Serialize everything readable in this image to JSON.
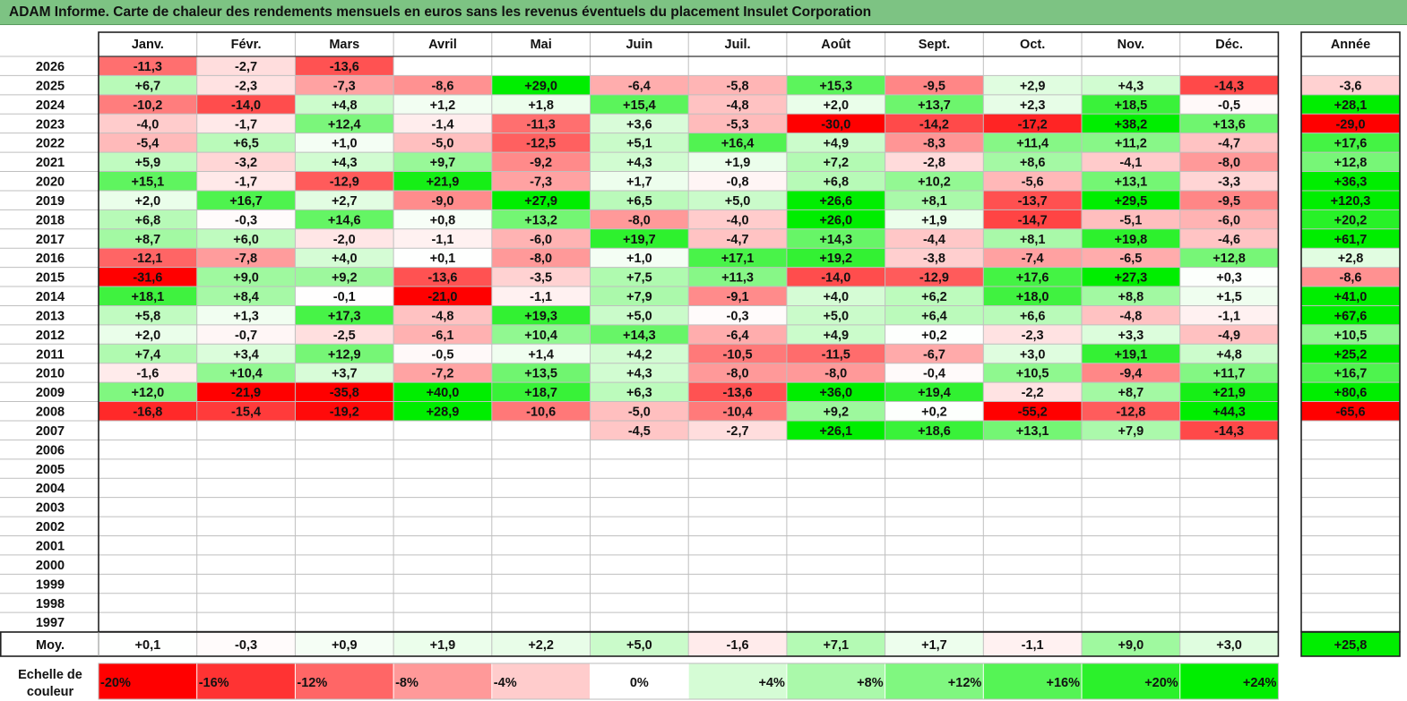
{
  "title": "ADAM Informe. Carte de chaleur des rendements mensuels en euros sans les revenus éventuels du placement Insulet Corporation",
  "chart_data": {
    "type": "heatmap",
    "months": [
      "Janv.",
      "Févr.",
      "Mars",
      "Avril",
      "Mai",
      "Juin",
      "Juil.",
      "Août",
      "Sept.",
      "Oct.",
      "Nov.",
      "Déc."
    ],
    "year_header": "Année",
    "rows": [
      {
        "year": "2026",
        "values": [
          "-11,3",
          "-2,7",
          "-13,6",
          "",
          "",
          "",
          "",
          "",
          "",
          "",
          "",
          ""
        ],
        "total": ""
      },
      {
        "year": "2025",
        "values": [
          "+6,7",
          "-2,3",
          "-7,3",
          "-8,6",
          "+29,0",
          "-6,4",
          "-5,8",
          "+15,3",
          "-9,5",
          "+2,9",
          "+4,3",
          "-14,3"
        ],
        "total": "-3,6"
      },
      {
        "year": "2024",
        "values": [
          "-10,2",
          "-14,0",
          "+4,8",
          "+1,2",
          "+1,8",
          "+15,4",
          "-4,8",
          "+2,0",
          "+13,7",
          "+2,3",
          "+18,5",
          "-0,5"
        ],
        "total": "+28,1"
      },
      {
        "year": "2023",
        "values": [
          "-4,0",
          "-1,7",
          "+12,4",
          "-1,4",
          "-11,3",
          "+3,6",
          "-5,3",
          "-30,0",
          "-14,2",
          "-17,2",
          "+38,2",
          "+13,6"
        ],
        "total": "-29,0"
      },
      {
        "year": "2022",
        "values": [
          "-5,4",
          "+6,5",
          "+1,0",
          "-5,0",
          "-12,5",
          "+5,1",
          "+16,4",
          "+4,9",
          "-8,3",
          "+11,4",
          "+11,2",
          "-4,7"
        ],
        "total": "+17,6"
      },
      {
        "year": "2021",
        "values": [
          "+5,9",
          "-3,2",
          "+4,3",
          "+9,7",
          "-9,2",
          "+4,3",
          "+1,9",
          "+7,2",
          "-2,8",
          "+8,6",
          "-4,1",
          "-8,0"
        ],
        "total": "+12,8"
      },
      {
        "year": "2020",
        "values": [
          "+15,1",
          "-1,7",
          "-12,9",
          "+21,9",
          "-7,3",
          "+1,7",
          "-0,8",
          "+6,8",
          "+10,2",
          "-5,6",
          "+13,1",
          "-3,3"
        ],
        "total": "+36,3"
      },
      {
        "year": "2019",
        "values": [
          "+2,0",
          "+16,7",
          "+2,7",
          "-9,0",
          "+27,9",
          "+6,5",
          "+5,0",
          "+26,6",
          "+8,1",
          "-13,7",
          "+29,5",
          "-9,5"
        ],
        "total": "+120,3"
      },
      {
        "year": "2018",
        "values": [
          "+6,8",
          "-0,3",
          "+14,6",
          "+0,8",
          "+13,2",
          "-8,0",
          "-4,0",
          "+26,0",
          "+1,9",
          "-14,7",
          "-5,1",
          "-6,0"
        ],
        "total": "+20,2"
      },
      {
        "year": "2017",
        "values": [
          "+8,7",
          "+6,0",
          "-2,0",
          "-1,1",
          "-6,0",
          "+19,7",
          "-4,7",
          "+14,3",
          "-4,4",
          "+8,1",
          "+19,8",
          "-4,6"
        ],
        "total": "+61,7"
      },
      {
        "year": "2016",
        "values": [
          "-12,1",
          "-7,8",
          "+4,0",
          "+0,1",
          "-8,0",
          "+1,0",
          "+17,1",
          "+19,2",
          "-3,8",
          "-7,4",
          "-6,5",
          "+12,8"
        ],
        "total": "+2,8"
      },
      {
        "year": "2015",
        "values": [
          "-31,6",
          "+9,0",
          "+9,2",
          "-13,6",
          "-3,5",
          "+7,5",
          "+11,3",
          "-14,0",
          "-12,9",
          "+17,6",
          "+27,3",
          "+0,3"
        ],
        "total": "-8,6"
      },
      {
        "year": "2014",
        "values": [
          "+18,1",
          "+8,4",
          "-0,1",
          "-21,0",
          "-1,1",
          "+7,9",
          "-9,1",
          "+4,0",
          "+6,2",
          "+18,0",
          "+8,8",
          "+1,5"
        ],
        "total": "+41,0"
      },
      {
        "year": "2013",
        "values": [
          "+5,8",
          "+1,3",
          "+17,3",
          "-4,8",
          "+19,3",
          "+5,0",
          "-0,3",
          "+5,0",
          "+6,4",
          "+6,6",
          "-4,8",
          "-1,1"
        ],
        "total": "+67,6"
      },
      {
        "year": "2012",
        "values": [
          "+2,0",
          "-0,7",
          "-2,5",
          "-6,1",
          "+10,4",
          "+14,3",
          "-6,4",
          "+4,9",
          "+0,2",
          "-2,3",
          "+3,3",
          "-4,9"
        ],
        "total": "+10,5"
      },
      {
        "year": "2011",
        "values": [
          "+7,4",
          "+3,4",
          "+12,9",
          "-0,5",
          "+1,4",
          "+4,2",
          "-10,5",
          "-11,5",
          "-6,7",
          "+3,0",
          "+19,1",
          "+4,8"
        ],
        "total": "+25,2"
      },
      {
        "year": "2010",
        "values": [
          "-1,6",
          "+10,4",
          "+3,7",
          "-7,2",
          "+13,5",
          "+4,3",
          "-8,0",
          "-8,0",
          "-0,4",
          "+10,5",
          "-9,4",
          "+11,7"
        ],
        "total": "+16,7"
      },
      {
        "year": "2009",
        "values": [
          "+12,0",
          "-21,9",
          "-35,8",
          "+40,0",
          "+18,7",
          "+6,3",
          "-13,6",
          "+36,0",
          "+19,4",
          "-2,2",
          "+8,7",
          "+21,9"
        ],
        "total": "+80,6"
      },
      {
        "year": "2008",
        "values": [
          "-16,8",
          "-15,4",
          "-19,2",
          "+28,9",
          "-10,6",
          "-5,0",
          "-10,4",
          "+9,2",
          "+0,2",
          "-55,2",
          "-12,8",
          "+44,3"
        ],
        "total": "-65,6"
      },
      {
        "year": "2007",
        "values": [
          "",
          "",
          "",
          "",
          "",
          "-4,5",
          "-2,7",
          "+26,1",
          "+18,6",
          "+13,1",
          "+7,9",
          "-14,3"
        ],
        "total": ""
      },
      {
        "year": "2006",
        "values": [
          "",
          "",
          "",
          "",
          "",
          "",
          "",
          "",
          "",
          "",
          "",
          ""
        ],
        "total": ""
      },
      {
        "year": "2005",
        "values": [
          "",
          "",
          "",
          "",
          "",
          "",
          "",
          "",
          "",
          "",
          "",
          ""
        ],
        "total": ""
      },
      {
        "year": "2004",
        "values": [
          "",
          "",
          "",
          "",
          "",
          "",
          "",
          "",
          "",
          "",
          "",
          ""
        ],
        "total": ""
      },
      {
        "year": "2003",
        "values": [
          "",
          "",
          "",
          "",
          "",
          "",
          "",
          "",
          "",
          "",
          "",
          ""
        ],
        "total": ""
      },
      {
        "year": "2002",
        "values": [
          "",
          "",
          "",
          "",
          "",
          "",
          "",
          "",
          "",
          "",
          "",
          ""
        ],
        "total": ""
      },
      {
        "year": "2001",
        "values": [
          "",
          "",
          "",
          "",
          "",
          "",
          "",
          "",
          "",
          "",
          "",
          ""
        ],
        "total": ""
      },
      {
        "year": "2000",
        "values": [
          "",
          "",
          "",
          "",
          "",
          "",
          "",
          "",
          "",
          "",
          "",
          ""
        ],
        "total": ""
      },
      {
        "year": "1999",
        "values": [
          "",
          "",
          "",
          "",
          "",
          "",
          "",
          "",
          "",
          "",
          "",
          ""
        ],
        "total": ""
      },
      {
        "year": "1998",
        "values": [
          "",
          "",
          "",
          "",
          "",
          "",
          "",
          "",
          "",
          "",
          "",
          ""
        ],
        "total": ""
      },
      {
        "year": "1997",
        "values": [
          "",
          "",
          "",
          "",
          "",
          "",
          "",
          "",
          "",
          "",
          "",
          ""
        ],
        "total": ""
      }
    ],
    "average": {
      "label": "Moy.",
      "values": [
        "+0,1",
        "-0,3",
        "+0,9",
        "+1,9",
        "+2,2",
        "+5,0",
        "-1,6",
        "+7,1",
        "+1,7",
        "-1,1",
        "+9,0",
        "+3,0"
      ],
      "total": "+25,8"
    },
    "scale": {
      "label_line1": "Echelle de",
      "label_line2": "couleur",
      "steps": [
        {
          "label": "-20%",
          "value": -20
        },
        {
          "label": "-16%",
          "value": -16
        },
        {
          "label": "-12%",
          "value": -12
        },
        {
          "label": "-8%",
          "value": -8
        },
        {
          "label": "-4%",
          "value": -4
        },
        {
          "label": "0%",
          "value": 0
        },
        {
          "label": "+4%",
          "value": 4
        },
        {
          "label": "+8%",
          "value": 8
        },
        {
          "label": "+12%",
          "value": 12
        },
        {
          "label": "+16%",
          "value": 16
        },
        {
          "label": "+20%",
          "value": 20
        },
        {
          "label": "+24%",
          "value": 24
        }
      ]
    },
    "colors": {
      "negative_max": "#ff0000",
      "neutral": "#ffffff",
      "positive_max": "#00ee00",
      "title_bg": "#7dc383"
    }
  }
}
